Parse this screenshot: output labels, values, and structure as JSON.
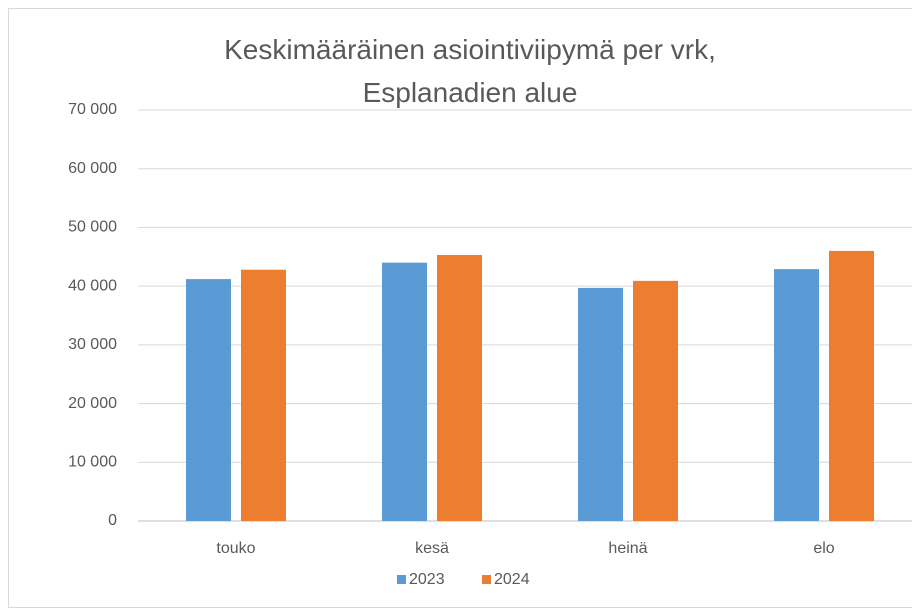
{
  "chart_data": {
    "type": "bar",
    "title": "Keskimääräinen asiointiviipymä per vrk, Esplanadien alue",
    "categories": [
      "touko",
      "kesä",
      "heinä",
      "elo"
    ],
    "series": [
      {
        "name": "2023",
        "color": "#5b9bd5",
        "values": [
          41200,
          44000,
          39700,
          42900
        ]
      },
      {
        "name": "2024",
        "color": "#ed7d31",
        "values": [
          42800,
          45300,
          40900,
          46000
        ]
      }
    ],
    "ylim": [
      0,
      70000
    ],
    "yticks": [
      0,
      {
        "value": 10000,
        "label": "10 000"
      },
      {
        "value": 20000,
        "label": "20 000"
      },
      {
        "value": 30000,
        "label": "30 000"
      },
      {
        "value": 40000,
        "label": "40 000"
      },
      {
        "value": 50000,
        "label": "50 000"
      },
      {
        "value": 60000,
        "label": "60 000"
      },
      {
        "value": 70000,
        "label": "70 000"
      }
    ],
    "grid": true,
    "legend": "bottom"
  }
}
